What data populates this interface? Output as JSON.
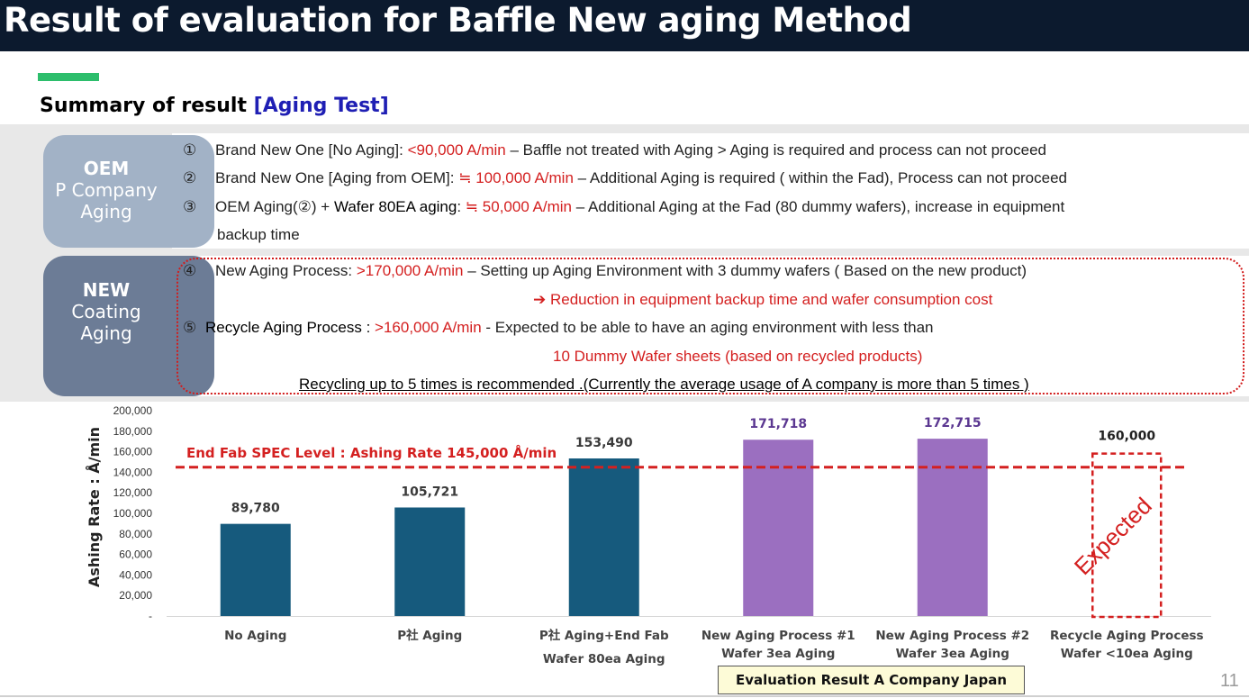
{
  "title": "Result of evaluation for Baffle New aging Method",
  "subtitle": {
    "main": "Summary of result ",
    "highlight": "[Aging Test]"
  },
  "oem_label": {
    "line1": "OEM",
    "line2": "P Company",
    "line3": "Aging"
  },
  "new_label": {
    "line1": "NEW",
    "line2": "Coating",
    "line3": "Aging"
  },
  "items": {
    "i1": {
      "num": "①",
      "text_a": "Brand New One [No Aging]: ",
      "rate": "<90,000 A/min",
      "text_b": " – Baffle not treated with Aging > Aging is required and process can not  proceed"
    },
    "i2": {
      "num": "②",
      "text_a": "Brand New One [Aging from OEM]: ",
      "rate": "≒ 100,000 A/min",
      "text_b": " – Additional Aging is required ( within the Fad), Process can not proceed"
    },
    "i3": {
      "num": "③",
      "text_a": "OEM Aging(②) + ",
      "text_bold": "Wafer 80EA aging",
      "text_c": ": ",
      "rate": "≒ 50,000 A/min",
      "text_b": " – Additional Aging at the Fad (80 dummy wafers), increase in equipment",
      "text_d": "backup time"
    },
    "i4": {
      "num": "④",
      "text_a": "New Aging Process: ",
      "rate": ">170,000 A/min",
      "text_b": " – Setting up Aging Environment with 3 dummy wafers ( Based on the new product)",
      "note": "➔ Reduction in equipment backup time and wafer consumption cost"
    },
    "i5": {
      "num": "⑤",
      "text_a": "Recycle Aging Process : ",
      "rate": ">160,000 A/min",
      "text_b": " - Expected to be able to have an aging environment with less than",
      "note": "10 Dummy Wafer sheets (based on recycled products)",
      "text_d": "Recycling up to 5 times is recommended .(Currently the average usage of A company is more than 5 times )"
    }
  },
  "chart_data": {
    "type": "bar",
    "ylabel": "Ashing Rate : Å/min",
    "xlabel": "",
    "ylim": [
      0,
      200000
    ],
    "y_ticks": [
      "-",
      "20,000",
      "40,000",
      "60,000",
      "80,000",
      "100,000",
      "120,000",
      "140,000",
      "160,000",
      "180,000",
      "200,000"
    ],
    "categories": [
      [
        "No Aging"
      ],
      [
        "P社 Aging"
      ],
      [
        "P社 Aging+End Fab",
        "Wafer 80ea Aging"
      ],
      [
        "New Aging Process #1",
        "Wafer 3ea Aging"
      ],
      [
        "New Aging Process #2",
        "Wafer 3ea Aging"
      ],
      [
        "Recycle Aging Process",
        "Wafer <10ea Aging"
      ]
    ],
    "values": [
      89780,
      105721,
      153490,
      171718,
      172715,
      160000
    ],
    "data_labels": [
      "89,780",
      "105,721",
      "153,490",
      "171,718",
      "172,715",
      "160,000"
    ],
    "bar_colors": [
      "#165a7d",
      "#165a7d",
      "#165a7d",
      "#9b6fc0",
      "#9b6fc0",
      "none"
    ],
    "label_colors": [
      "#3a3a3a",
      "#3a3a3a",
      "#3a3a3a",
      "#5b3791",
      "#5b3791",
      "#222222"
    ],
    "expected_bar_index": 5,
    "spec_line": {
      "value": 145000,
      "label": "End Fab SPEC Level : Ashing Rate 145,000 Å/min",
      "color": "#d42020"
    },
    "expected_text": "Expected",
    "grid": false,
    "legend": "none"
  },
  "footer": {
    "box_text": "Evaluation Result A Company Japan",
    "page_number": "11"
  }
}
